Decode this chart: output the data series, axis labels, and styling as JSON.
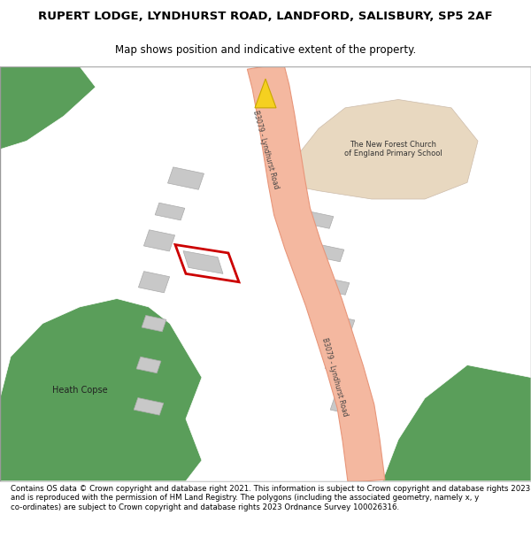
{
  "title_line1": "RUPERT LODGE, LYNDHURST ROAD, LANDFORD, SALISBURY, SP5 2AF",
  "title_line2": "Map shows position and indicative extent of the property.",
  "footer_text": "Contains OS data © Crown copyright and database right 2021. This information is subject to Crown copyright and database rights 2023 and is reproduced with the permission of HM Land Registry. The polygons (including the associated geometry, namely x, y co-ordinates) are subject to Crown copyright and database rights 2023 Ordnance Survey 100026316.",
  "bg_color": "#ffffff",
  "map_bg": "#f5f5f5",
  "road_color": "#f4b8a0",
  "road_border_color": "#e8967a",
  "green_color": "#5a9e5a",
  "school_ground_color": "#e8d8c0",
  "building_color": "#c8c8c8",
  "highlight_color": "#cc0000",
  "road_label": "B3079 - Lyndhurst Road",
  "school_label": "The New Forest Church\nof England Primary School",
  "copse_label": "Heath Copse"
}
